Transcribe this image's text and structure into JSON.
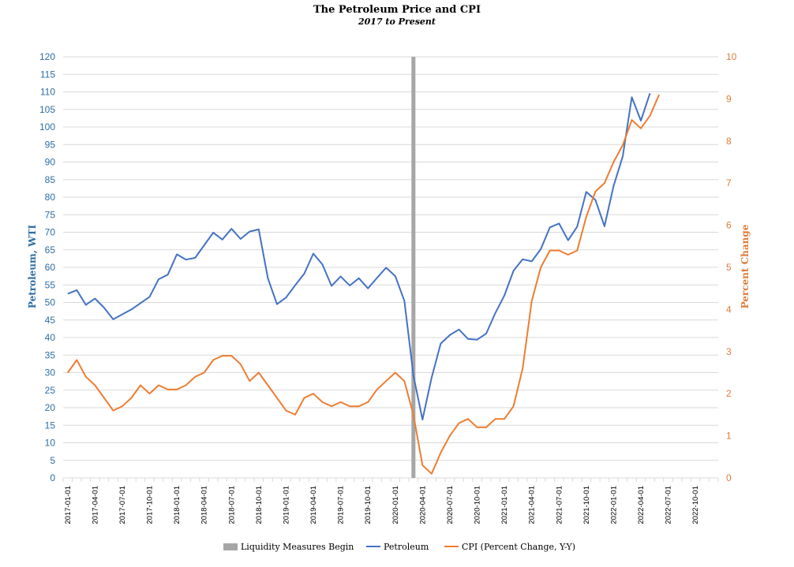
{
  "chart_data": {
    "type": "line",
    "title": "The Petroleum Price and CPI",
    "subtitle": "2017 to Present",
    "ylabel_left": "Petroleum, WTI",
    "ylabel_right": "Percent Change",
    "ylim_left": [
      0,
      120
    ],
    "ylim_right": [
      0,
      10
    ],
    "yticks_left": [
      "0",
      "5",
      "10",
      "15",
      "20",
      "25",
      "30",
      "35",
      "40",
      "45",
      "50",
      "55",
      "60",
      "65",
      "70",
      "75",
      "80",
      "85",
      "90",
      "95",
      "100",
      "105",
      "110",
      "115",
      "120"
    ],
    "yticks_right": [
      "0",
      "1",
      "2",
      "3",
      "4",
      "5",
      "6",
      "7",
      "8",
      "9",
      "10"
    ],
    "x_ticks": [
      "2017-01-01",
      "2017-04-01",
      "2017-07-01",
      "2017-10-01",
      "2018-01-01",
      "2018-04-01",
      "2018-07-01",
      "2018-10-01",
      "2019-01-01",
      "2019-04-01",
      "2019-07-01",
      "2019-10-01",
      "2020-01-01",
      "2020-04-01",
      "2020-07-01",
      "2020-10-01",
      "2021-01-01",
      "2021-04-01",
      "2021-07-01",
      "2021-10-01",
      "2022-01-01",
      "2022-04-01",
      "2022-07-01",
      "2022-10-01"
    ],
    "x_months": [
      "2017-01",
      "2017-02",
      "2017-03",
      "2017-04",
      "2017-05",
      "2017-06",
      "2017-07",
      "2017-08",
      "2017-09",
      "2017-10",
      "2017-11",
      "2017-12",
      "2018-01",
      "2018-02",
      "2018-03",
      "2018-04",
      "2018-05",
      "2018-06",
      "2018-07",
      "2018-08",
      "2018-09",
      "2018-10",
      "2018-11",
      "2018-12",
      "2019-01",
      "2019-02",
      "2019-03",
      "2019-04",
      "2019-05",
      "2019-06",
      "2019-07",
      "2019-08",
      "2019-09",
      "2019-10",
      "2019-11",
      "2019-12",
      "2020-01",
      "2020-02",
      "2020-03",
      "2020-04",
      "2020-05",
      "2020-06",
      "2020-07",
      "2020-08",
      "2020-09",
      "2020-10",
      "2020-11",
      "2020-12",
      "2021-01",
      "2021-02",
      "2021-03",
      "2021-04",
      "2021-05",
      "2021-06",
      "2021-07",
      "2021-08",
      "2021-09",
      "2021-10",
      "2021-11",
      "2021-12",
      "2022-01",
      "2022-02",
      "2022-03",
      "2022-04",
      "2022-05",
      "2022-06",
      "2022-07",
      "2022-08",
      "2022-09",
      "2022-10",
      "2022-11",
      "2022-12"
    ],
    "liquidity_marker": {
      "name": "Liquidity Measures Begin",
      "x": "2020-03",
      "color": "#a6a6a6"
    },
    "series": [
      {
        "name": "Petroleum",
        "axis": "left",
        "color": "#4472c4",
        "values": [
          52.5,
          53.5,
          49.3,
          51.1,
          48.5,
          45.2,
          46.6,
          48.0,
          49.8,
          51.6,
          56.6,
          57.9,
          63.7,
          62.2,
          62.7,
          66.3,
          69.9,
          67.9,
          71.0,
          68.1,
          70.2,
          70.8,
          56.9,
          49.5,
          51.4,
          54.9,
          58.2,
          63.9,
          60.8,
          54.7,
          57.4,
          54.8,
          56.9,
          54.0,
          57.0,
          59.9,
          57.5,
          50.5,
          29.2,
          16.6,
          28.6,
          38.3,
          40.7,
          42.3,
          39.6,
          39.4,
          41.1,
          47.0,
          52.0,
          59.0,
          62.3,
          61.7,
          65.2,
          71.4,
          72.5,
          67.7,
          71.6,
          81.5,
          79.2,
          71.7,
          83.2,
          91.6,
          108.5,
          101.8,
          109.6,
          null,
          null,
          null,
          null,
          null,
          null,
          null
        ]
      },
      {
        "name": "CPI (Percent Change, Y-Y)",
        "axis": "right",
        "color": "#ed7d31",
        "values": [
          2.5,
          2.8,
          2.4,
          2.2,
          1.9,
          1.6,
          1.7,
          1.9,
          2.2,
          2.0,
          2.2,
          2.1,
          2.1,
          2.2,
          2.4,
          2.5,
          2.8,
          2.9,
          2.9,
          2.7,
          2.3,
          2.5,
          2.2,
          1.9,
          1.6,
          1.5,
          1.9,
          2.0,
          1.8,
          1.7,
          1.8,
          1.7,
          1.7,
          1.8,
          2.1,
          2.3,
          2.5,
          2.3,
          1.5,
          0.3,
          0.1,
          0.6,
          1.0,
          1.3,
          1.4,
          1.2,
          1.2,
          1.4,
          1.4,
          1.7,
          2.6,
          4.2,
          5.0,
          5.4,
          5.4,
          5.3,
          5.4,
          6.2,
          6.8,
          7.0,
          7.5,
          7.9,
          8.5,
          8.3,
          8.6,
          9.1,
          null,
          null,
          null,
          null,
          null,
          null
        ]
      }
    ],
    "legend": {
      "position": "bottom",
      "items": [
        {
          "label": "Liquidity Measures Begin",
          "color": "#a6a6a6",
          "style": "block"
        },
        {
          "label": "Petroleum",
          "color": "#4472c4",
          "style": "line"
        },
        {
          "label": "CPI (Percent Change, Y-Y)",
          "color": "#ed7d31",
          "style": "line"
        }
      ]
    },
    "grid": true
  }
}
